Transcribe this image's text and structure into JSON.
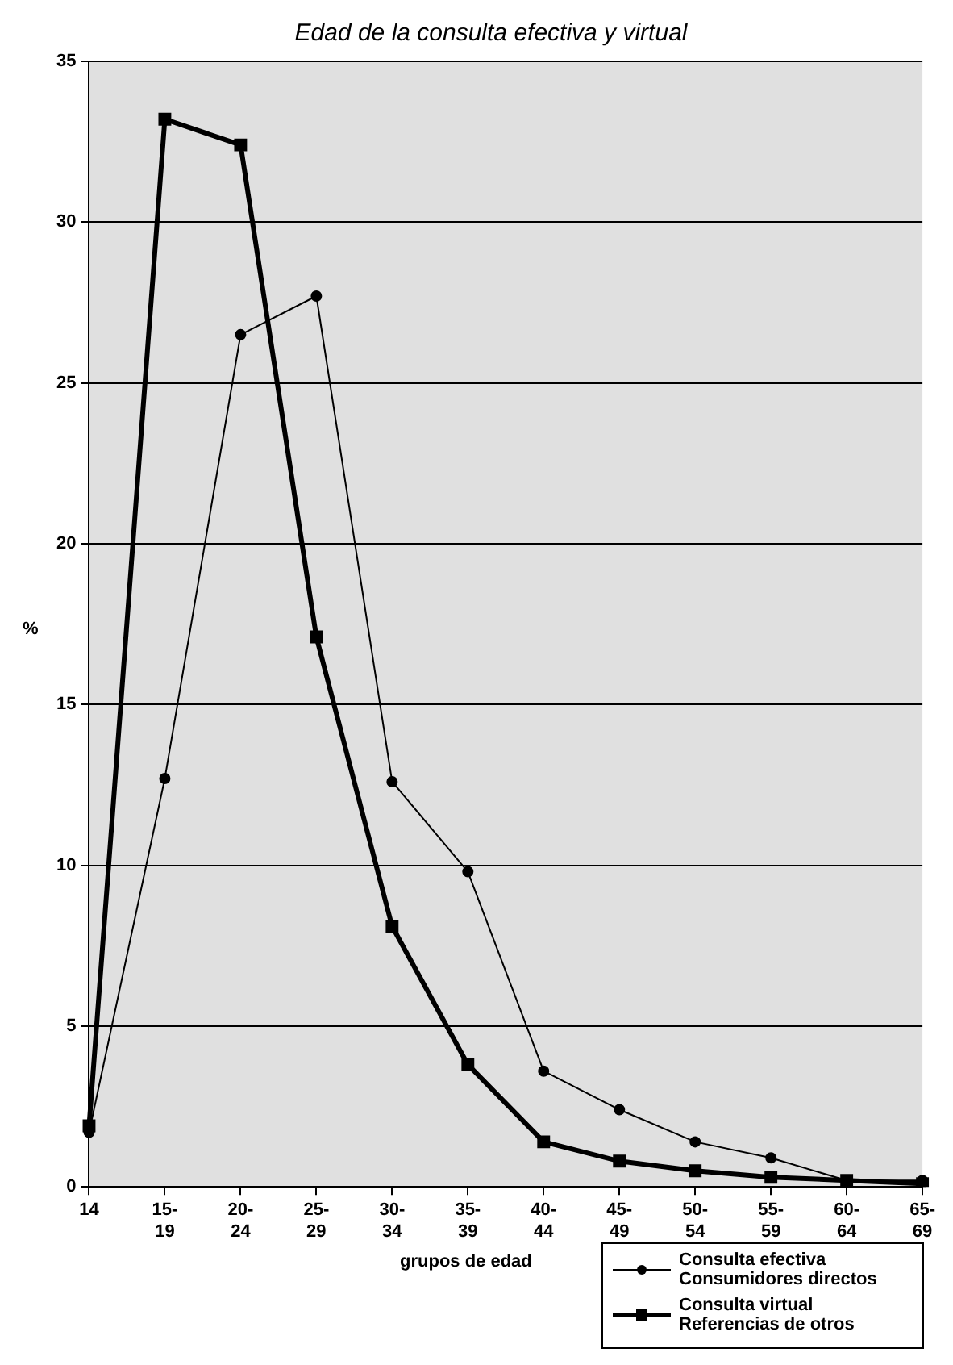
{
  "chart_data": {
    "type": "line",
    "title": "Edad de la consulta efectiva y virtual",
    "xlabel": "grupos de edad",
    "ylabel": "%",
    "categories": [
      "14",
      "15-19",
      "20-24",
      "25-29",
      "30-34",
      "35-39",
      "40-44",
      "45-49",
      "50-54",
      "55-59",
      "60-64",
      "65-69"
    ],
    "series": [
      {
        "name": "Consulta efectiva Consumidores directos",
        "color": "#000000",
        "marker": "circle",
        "values": [
          1.7,
          12.7,
          26.5,
          27.7,
          12.6,
          9.8,
          3.6,
          2.4,
          1.4,
          0.9,
          0.2,
          0.2
        ]
      },
      {
        "name": "Consulta virtual Referencias de otros",
        "color": "#000000",
        "marker": "square",
        "values": [
          1.9,
          33.2,
          32.4,
          17.1,
          8.1,
          3.8,
          1.4,
          0.8,
          0.5,
          0.3,
          0.2,
          0.1
        ]
      }
    ],
    "ylim": [
      0,
      35
    ],
    "yticks": [
      0,
      5,
      10,
      15,
      20,
      25,
      30,
      35
    ],
    "grid": "y",
    "legend": "bottom right"
  }
}
